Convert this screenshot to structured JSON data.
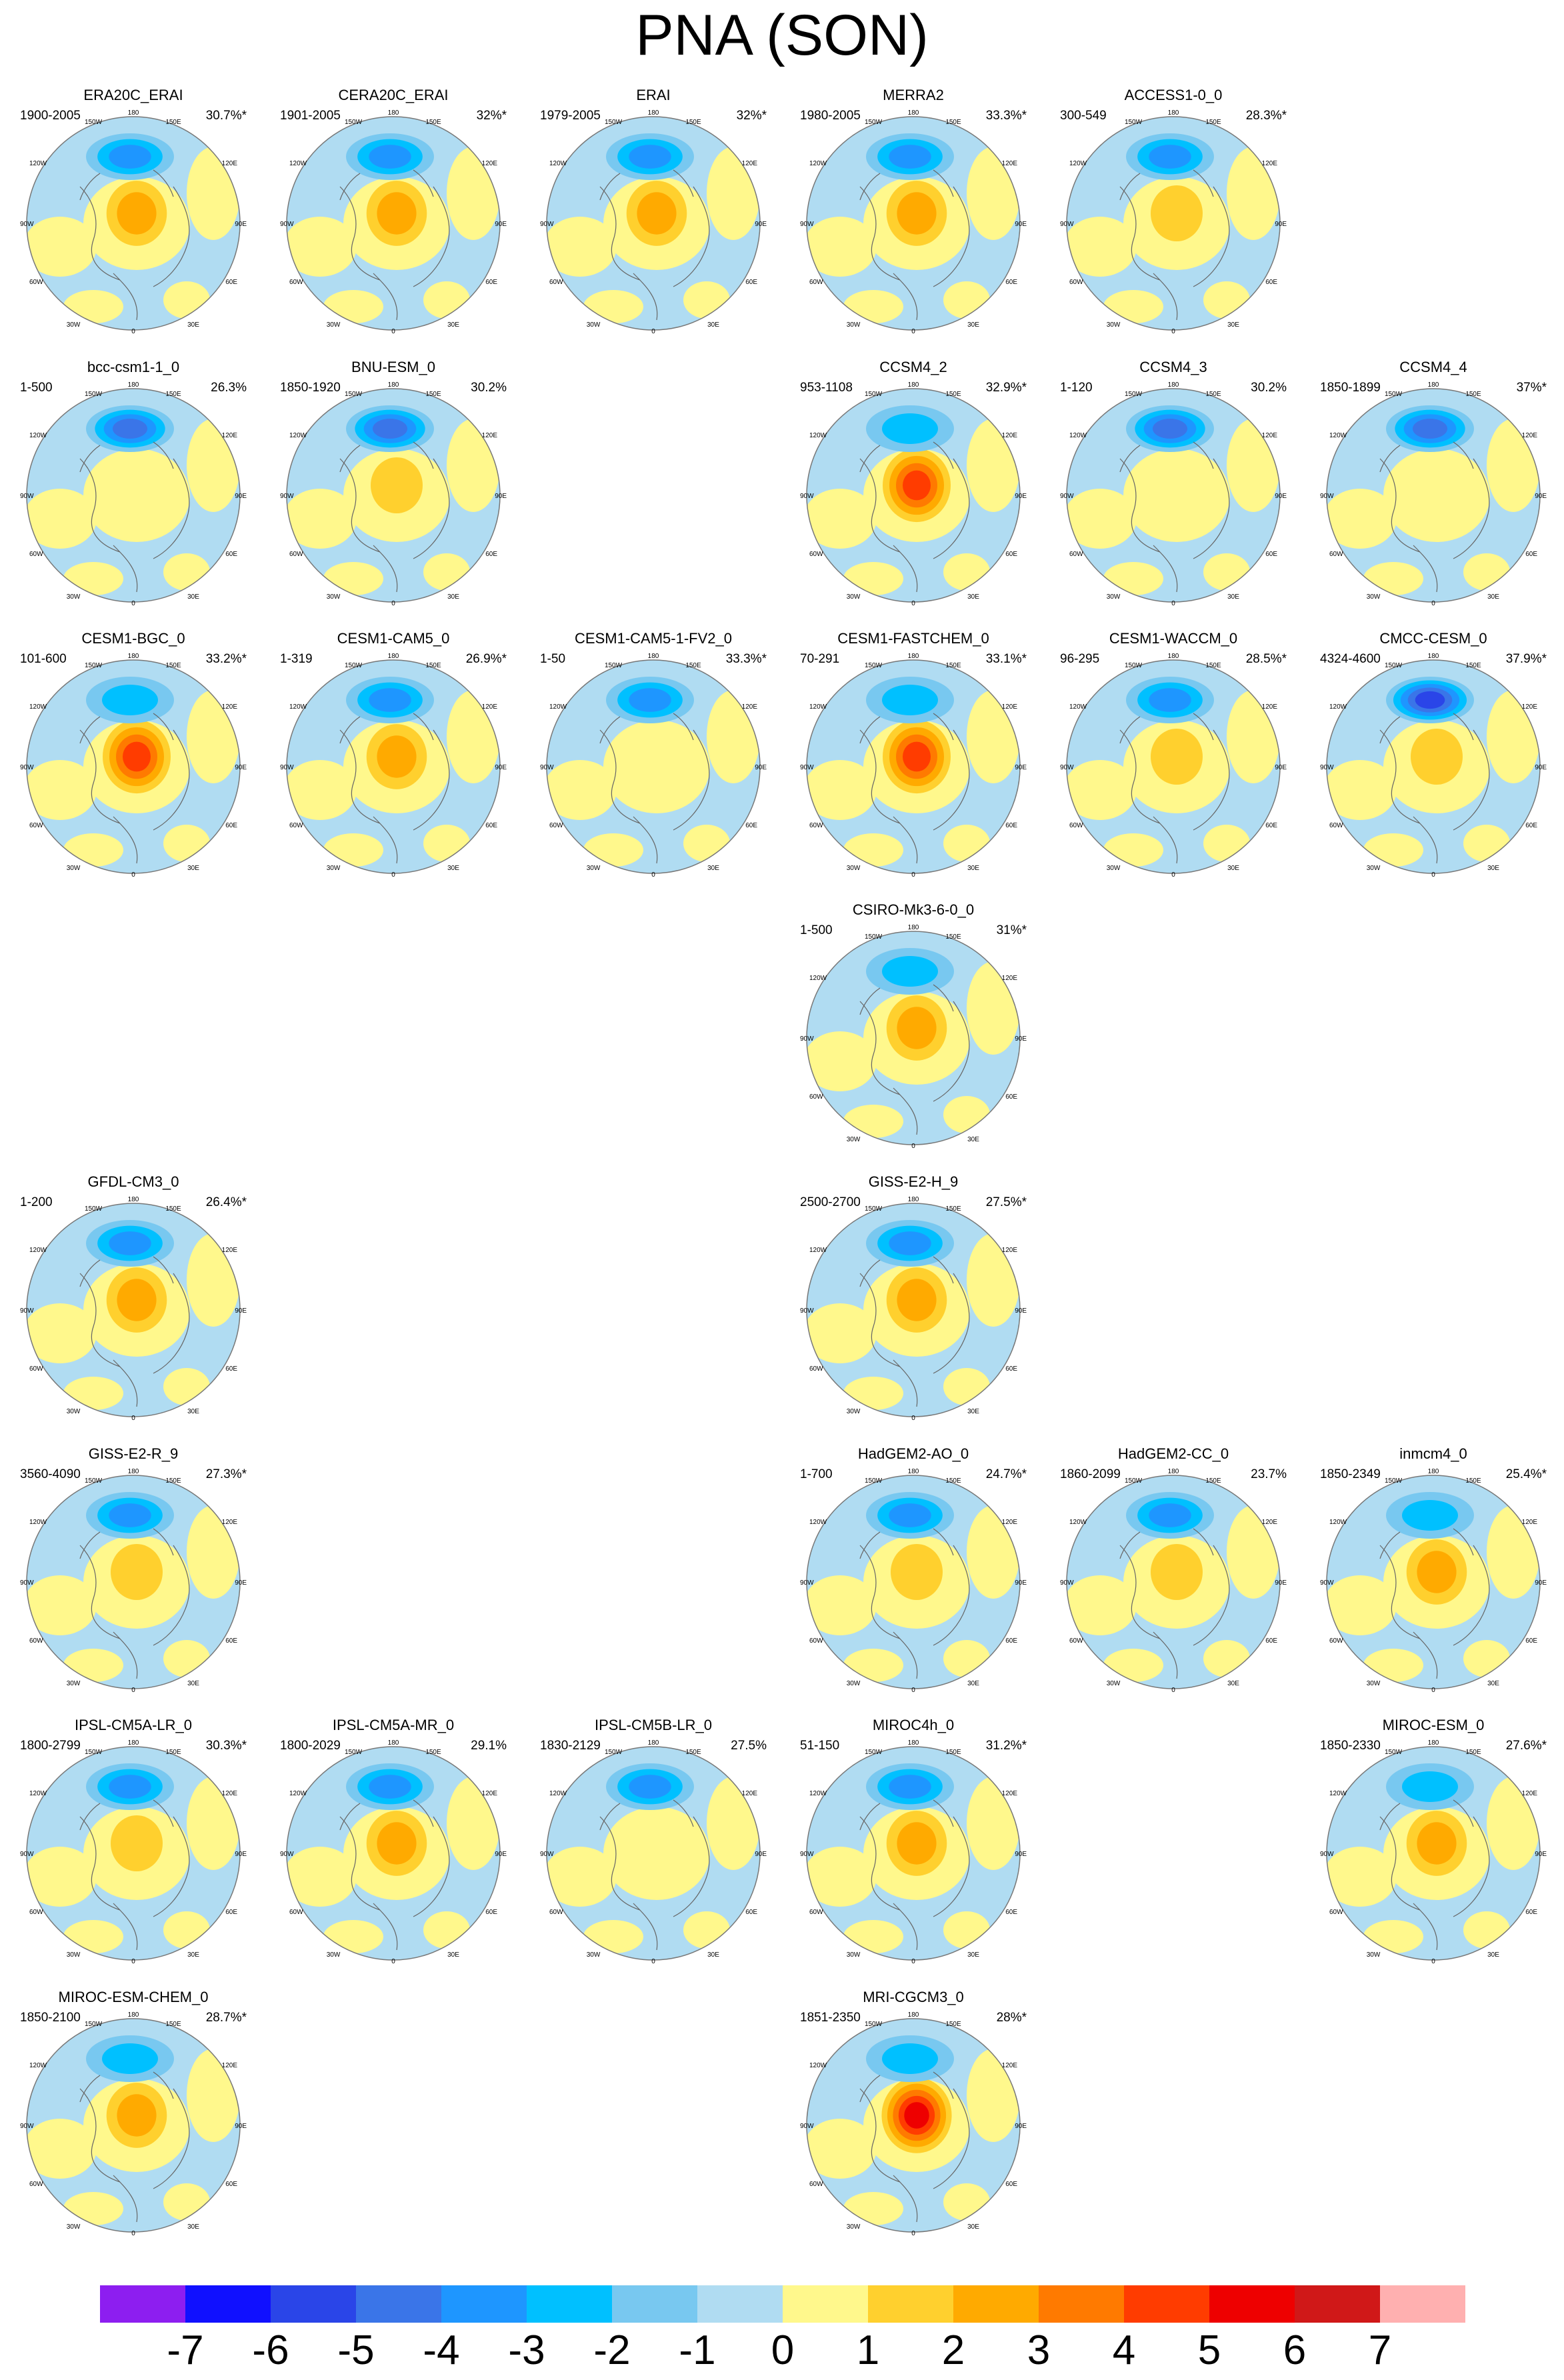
{
  "title": "PNA (SON)",
  "panels": [
    {
      "name": "ERA20C_ERAI",
      "period": "1900-2005",
      "pct": "30.7%*",
      "row": 0,
      "col": 0,
      "neg": 2.5,
      "pos": 3.0
    },
    {
      "name": "CERA20C_ERAI",
      "period": "1901-2005",
      "pct": "32%*",
      "row": 0,
      "col": 1,
      "neg": 2.5,
      "pos": 2.5
    },
    {
      "name": "ERAI",
      "period": "1979-2005",
      "pct": "32%*",
      "row": 0,
      "col": 2,
      "neg": 2.5,
      "pos": 2.5
    },
    {
      "name": "MERRA2",
      "period": "1980-2005",
      "pct": "33.3%*",
      "row": 0,
      "col": 3,
      "neg": 2.5,
      "pos": 3.0
    },
    {
      "name": "ACCESS1-0_0",
      "period": "300-549",
      "pct": "28.3%*",
      "row": 0,
      "col": 4,
      "neg": 3.0,
      "pos": 2.0
    },
    {
      "name": "bcc-csm1-1_0",
      "period": "1-500",
      "pct": "26.3%",
      "row": 1,
      "col": 0,
      "neg": 4.0,
      "pos": 1.0
    },
    {
      "name": "BNU-ESM_0",
      "period": "1850-1920",
      "pct": "30.2%",
      "row": 1,
      "col": 1,
      "neg": 3.5,
      "pos": 2.0
    },
    {
      "name": "CCSM4_2",
      "period": "953-1108",
      "pct": "32.9%*",
      "row": 1,
      "col": 3,
      "neg": 2.0,
      "pos": 4.5
    },
    {
      "name": "CCSM4_3",
      "period": "1-120",
      "pct": "30.2%",
      "row": 1,
      "col": 4,
      "neg": 3.5,
      "pos": 1.0
    },
    {
      "name": "CCSM4_4",
      "period": "1850-1899",
      "pct": "37%*",
      "row": 1,
      "col": 5,
      "neg": 4.0,
      "pos": 1.0
    },
    {
      "name": "CESM1-BGC_0",
      "period": "101-600",
      "pct": "33.2%*",
      "row": 2,
      "col": 0,
      "neg": 2.0,
      "pos": 5.0
    },
    {
      "name": "CESM1-CAM5_0",
      "period": "1-319",
      "pct": "26.9%*",
      "row": 2,
      "col": 1,
      "neg": 2.5,
      "pos": 2.5
    },
    {
      "name": "CESM1-CAM5-1-FV2_0",
      "period": "1-50",
      "pct": "33.3%*",
      "row": 2,
      "col": 2,
      "neg": 3.0,
      "pos": 1.0
    },
    {
      "name": "CESM1-FASTCHEM_0",
      "period": "70-291",
      "pct": "33.1%*",
      "row": 2,
      "col": 3,
      "neg": 2.0,
      "pos": 4.5
    },
    {
      "name": "CESM1-WACCM_0",
      "period": "96-295",
      "pct": "28.5%*",
      "row": 2,
      "col": 4,
      "neg": 3.0,
      "pos": 2.0
    },
    {
      "name": "CMCC-CESM_0",
      "period": "4324-4600",
      "pct": "37.9%*",
      "row": 2,
      "col": 5,
      "neg": 5.0,
      "pos": 2.0
    },
    {
      "name": "CSIRO-Mk3-6-0_0",
      "period": "1-500",
      "pct": "31%*",
      "row": 3,
      "col": 3,
      "neg": 2.0,
      "pos": 2.5
    },
    {
      "name": "GFDL-CM3_0",
      "period": "1-200",
      "pct": "26.4%*",
      "row": 4,
      "col": 0,
      "neg": 2.5,
      "pos": 3.0
    },
    {
      "name": "GISS-E2-H_9",
      "period": "2500-2700",
      "pct": "27.5%*",
      "row": 4,
      "col": 3,
      "neg": 2.5,
      "pos": 2.5
    },
    {
      "name": "GISS-E2-R_9",
      "period": "3560-4090",
      "pct": "27.3%*",
      "row": 5,
      "col": 0,
      "neg": 3.0,
      "pos": 2.0
    },
    {
      "name": "HadGEM2-AO_0",
      "period": "1-700",
      "pct": "24.7%*",
      "row": 5,
      "col": 3,
      "neg": 3.0,
      "pos": 2.0
    },
    {
      "name": "HadGEM2-CC_0",
      "period": "1860-2099",
      "pct": "23.7%",
      "row": 5,
      "col": 4,
      "neg": 3.0,
      "pos": 1.5
    },
    {
      "name": "inmcm4_0",
      "period": "1850-2349",
      "pct": "25.4%*",
      "row": 5,
      "col": 5,
      "neg": 2.0,
      "pos": 3.0
    },
    {
      "name": "IPSL-CM5A-LR_0",
      "period": "1800-2799",
      "pct": "30.3%*",
      "row": 6,
      "col": 0,
      "neg": 3.0,
      "pos": 1.5
    },
    {
      "name": "IPSL-CM5A-MR_0",
      "period": "1800-2029",
      "pct": "29.1%",
      "row": 6,
      "col": 1,
      "neg": 2.5,
      "pos": 2.5
    },
    {
      "name": "IPSL-CM5B-LR_0",
      "period": "1830-2129",
      "pct": "27.5%",
      "row": 6,
      "col": 2,
      "neg": 3.0,
      "pos": 1.0
    },
    {
      "name": "MIROC4h_0",
      "period": "51-150",
      "pct": "31.2%*",
      "row": 6,
      "col": 3,
      "neg": 3.0,
      "pos": 2.5
    },
    {
      "name": "MIROC-ESM_0",
      "period": "1850-2330",
      "pct": "27.6%*",
      "row": 6,
      "col": 5,
      "neg": 2.0,
      "pos": 3.0
    },
    {
      "name": "MIROC-ESM-CHEM_0",
      "period": "1850-2100",
      "pct": "28.7%*",
      "row": 7,
      "col": 0,
      "neg": 2.0,
      "pos": 3.0
    },
    {
      "name": "MRI-CGCM3_0",
      "period": "1851-2350",
      "pct": "28%*",
      "row": 7,
      "col": 3,
      "neg": 2.0,
      "pos": 5.5
    }
  ],
  "map_labels": {
    "top": "180",
    "tl": "150W",
    "tr": "150E",
    "ul": "120W",
    "ur": "120E",
    "ml": "90W",
    "mr": "90E",
    "ll": "60W",
    "lr": "60E",
    "bl": "30W",
    "br": "30E",
    "bottom": "0"
  },
  "colorbar": {
    "colors": [
      "#8d1ef0",
      "#1010ff",
      "#2a45e8",
      "#3a75e8",
      "#1e96ff",
      "#00c0ff",
      "#78c8f0",
      "#b0dcf2",
      "#fff88c",
      "#ffd02e",
      "#ffaa00",
      "#ff7a00",
      "#ff3c00",
      "#ee0000",
      "#d01818",
      "#ffb0b0"
    ],
    "labels": [
      "-7",
      "-6",
      "-5",
      "-4",
      "-3",
      "-2",
      "-1",
      "0",
      "1",
      "2",
      "3",
      "4",
      "5",
      "6",
      "7"
    ]
  }
}
